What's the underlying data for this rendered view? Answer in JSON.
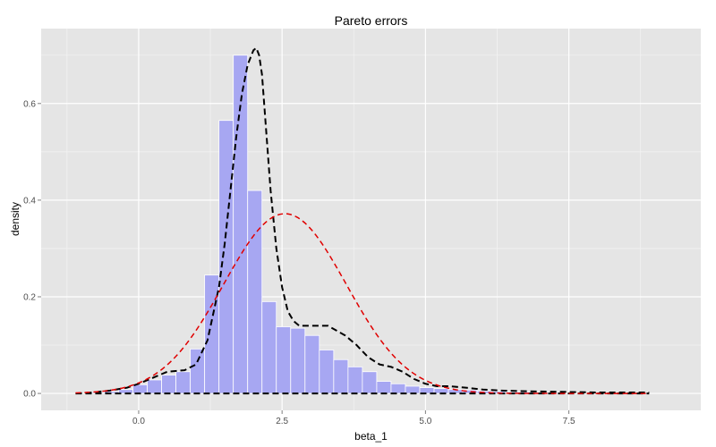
{
  "chart_data": {
    "type": "histogram",
    "title": "Pareto errors",
    "xlabel": "beta_1",
    "ylabel": "density",
    "xlim": [
      -1.7,
      9.8
    ],
    "ylim": [
      -0.035,
      0.755
    ],
    "x_ticks": [
      0,
      2.5,
      5,
      7.5
    ],
    "x_tick_labels": [
      "0.0",
      "2.5",
      "5.0",
      "7.5"
    ],
    "y_ticks": [
      0,
      0.2,
      0.4,
      0.6
    ],
    "y_tick_labels": [
      "0.0",
      "0.2",
      "0.4",
      "0.6"
    ],
    "grid": true,
    "colors": {
      "panel": "#e5e5e5",
      "grid_major": "#ffffff",
      "grid_minor": "#f2f2f2",
      "bar_fill": "#a7a7f2",
      "bar_stroke": "#ffffff",
      "density_line": "#000000",
      "normal_line": "#e00000"
    },
    "histogram": {
      "bin_width": 0.25,
      "bins": [
        {
          "x0": -1.1,
          "x1": -0.85,
          "density": 0.0
        },
        {
          "x0": -0.85,
          "x1": -0.6,
          "density": 0.002
        },
        {
          "x0": -0.6,
          "x1": -0.35,
          "density": 0.004
        },
        {
          "x0": -0.35,
          "x1": -0.1,
          "density": 0.008
        },
        {
          "x0": -0.1,
          "x1": 0.15,
          "density": 0.018
        },
        {
          "x0": 0.15,
          "x1": 0.4,
          "density": 0.028
        },
        {
          "x0": 0.4,
          "x1": 0.65,
          "density": 0.038
        },
        {
          "x0": 0.65,
          "x1": 0.9,
          "density": 0.045
        },
        {
          "x0": 0.9,
          "x1": 1.15,
          "density": 0.092
        },
        {
          "x0": 1.15,
          "x1": 1.4,
          "density": 0.245
        },
        {
          "x0": 1.4,
          "x1": 1.65,
          "density": 0.565
        },
        {
          "x0": 1.65,
          "x1": 1.9,
          "density": 0.7
        },
        {
          "x0": 1.9,
          "x1": 2.15,
          "density": 0.42
        },
        {
          "x0": 2.15,
          "x1": 2.4,
          "density": 0.19
        },
        {
          "x0": 2.4,
          "x1": 2.65,
          "density": 0.138
        },
        {
          "x0": 2.65,
          "x1": 2.9,
          "density": 0.135
        },
        {
          "x0": 2.9,
          "x1": 3.15,
          "density": 0.12
        },
        {
          "x0": 3.15,
          "x1": 3.4,
          "density": 0.09
        },
        {
          "x0": 3.4,
          "x1": 3.65,
          "density": 0.07
        },
        {
          "x0": 3.65,
          "x1": 3.9,
          "density": 0.055
        },
        {
          "x0": 3.9,
          "x1": 4.15,
          "density": 0.045
        },
        {
          "x0": 4.15,
          "x1": 4.4,
          "density": 0.025
        },
        {
          "x0": 4.4,
          "x1": 4.65,
          "density": 0.02
        },
        {
          "x0": 4.65,
          "x1": 4.9,
          "density": 0.015
        },
        {
          "x0": 4.9,
          "x1": 5.15,
          "density": 0.012
        },
        {
          "x0": 5.15,
          "x1": 5.4,
          "density": 0.01
        },
        {
          "x0": 5.4,
          "x1": 5.65,
          "density": 0.008
        },
        {
          "x0": 5.65,
          "x1": 5.9,
          "density": 0.007
        },
        {
          "x0": 5.9,
          "x1": 6.15,
          "density": 0.005
        },
        {
          "x0": 6.15,
          "x1": 6.4,
          "density": 0.004
        },
        {
          "x0": 6.4,
          "x1": 6.65,
          "density": 0.003
        },
        {
          "x0": 6.65,
          "x1": 6.9,
          "density": 0.003
        },
        {
          "x0": 6.9,
          "x1": 7.15,
          "density": 0.002
        },
        {
          "x0": 7.15,
          "x1": 7.4,
          "density": 0.002
        },
        {
          "x0": 7.4,
          "x1": 7.65,
          "density": 0.001
        },
        {
          "x0": 7.65,
          "x1": 7.9,
          "density": 0.001
        },
        {
          "x0": 7.9,
          "x1": 8.15,
          "density": 0.001
        },
        {
          "x0": 8.15,
          "x1": 8.4,
          "density": 0.001
        },
        {
          "x0": 8.4,
          "x1": 8.65,
          "density": 0.001
        },
        {
          "x0": 8.65,
          "x1": 8.9,
          "density": 0.001
        }
      ]
    },
    "series": [
      {
        "line_style": "dashed",
        "x": [
          -1.1,
          -0.8,
          -0.5,
          -0.2,
          0.0,
          0.2,
          0.5,
          0.8,
          1.0,
          1.2,
          1.4,
          1.5,
          1.6,
          1.7,
          1.8,
          1.9,
          2.0,
          2.05,
          2.1,
          2.15,
          2.2,
          2.3,
          2.4,
          2.5,
          2.6,
          2.7,
          2.8,
          3.0,
          3.3,
          3.6,
          3.8,
          4.0,
          4.2,
          4.4,
          4.6,
          4.8,
          5.0,
          5.2,
          5.4,
          5.7,
          6.0,
          6.3,
          6.6,
          7.0,
          7.5,
          8.0,
          8.5,
          8.9
        ],
        "y": [
          0.0,
          0.002,
          0.006,
          0.012,
          0.02,
          0.03,
          0.045,
          0.048,
          0.06,
          0.11,
          0.22,
          0.31,
          0.42,
          0.53,
          0.62,
          0.68,
          0.71,
          0.715,
          0.7,
          0.66,
          0.58,
          0.42,
          0.3,
          0.22,
          0.17,
          0.15,
          0.14,
          0.14,
          0.14,
          0.12,
          0.1,
          0.075,
          0.06,
          0.055,
          0.045,
          0.03,
          0.02,
          0.015,
          0.015,
          0.012,
          0.008,
          0.006,
          0.005,
          0.004,
          0.003,
          0.002,
          0.002,
          0.002
        ]
      },
      {
        "line_style": "dashed",
        "x": [
          -1.1,
          8.9
        ],
        "y": [
          0.0,
          0.0
        ]
      },
      {
        "line_style": "dashed",
        "distribution": "normal",
        "mean": 2.55,
        "sd": 1.07,
        "x_range": [
          -1.1,
          8.9
        ],
        "peak_density": 0.372
      }
    ]
  }
}
